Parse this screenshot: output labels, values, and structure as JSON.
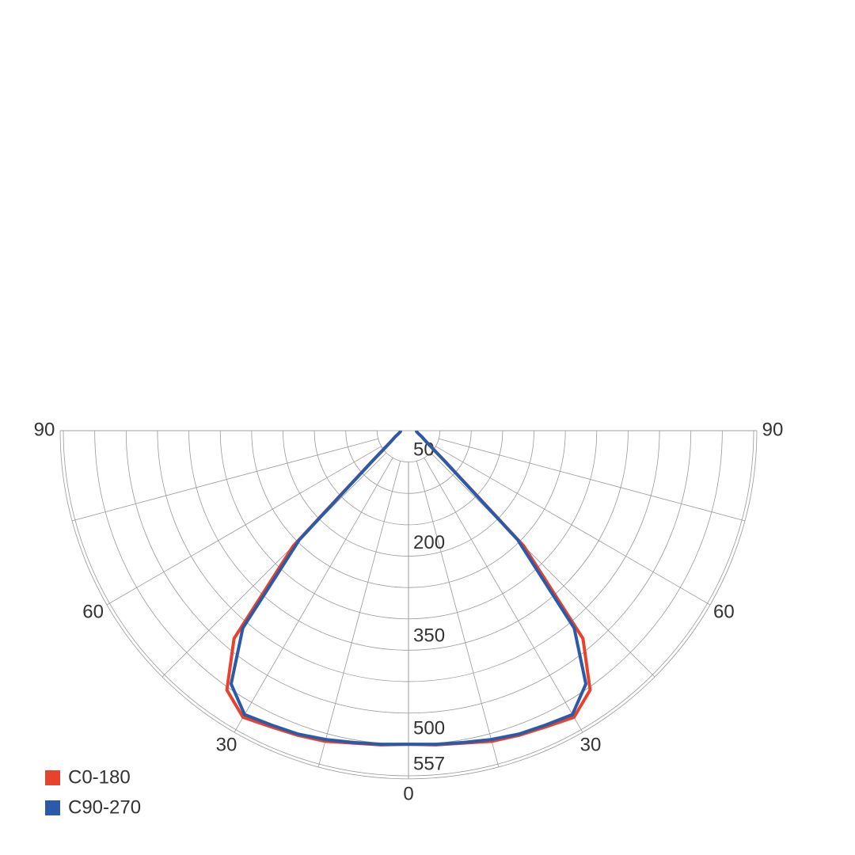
{
  "chart_data": {
    "type": "polar",
    "x": [
      0,
      5,
      10,
      15,
      20,
      25,
      30,
      35,
      40,
      45,
      50,
      55,
      60,
      65,
      70,
      75,
      80,
      85,
      90
    ],
    "series": [
      {
        "name": "C0-180",
        "color": "#e8412c",
        "values": [
          506,
          509,
          512,
          519,
          523,
          527,
          534,
          511,
          438,
          263,
          77,
          43,
          30,
          24,
          19,
          16,
          14,
          13,
          13
        ]
      },
      {
        "name": "C90-270",
        "color": "#2a5aa8",
        "values": [
          506,
          508,
          511,
          516,
          521,
          524,
          529,
          499,
          416,
          249,
          75,
          42,
          30,
          24,
          19,
          16,
          14,
          13,
          13
        ]
      }
    ],
    "rlim": [
      0,
      557
    ],
    "rticks": [
      50,
      200,
      350,
      500,
      557
    ],
    "angle_ticks": [
      0,
      30,
      60,
      90
    ],
    "legend": "bottom-left"
  }
}
